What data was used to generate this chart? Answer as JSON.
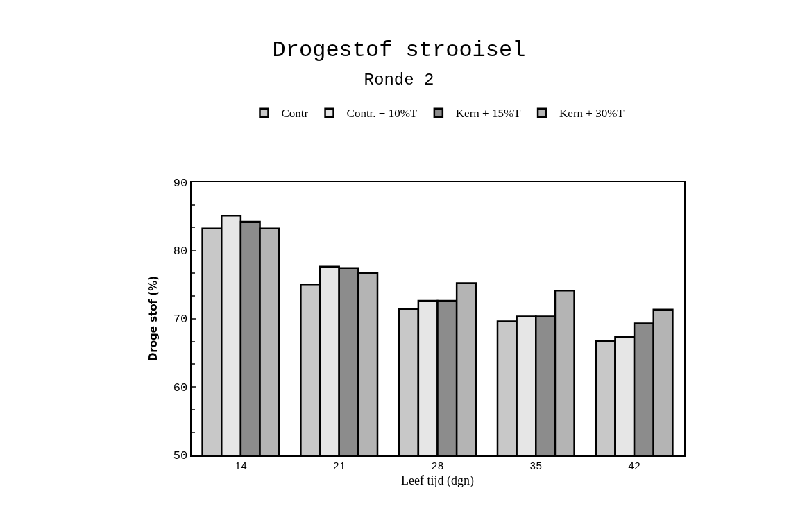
{
  "chart_data": {
    "type": "bar",
    "title": "Drogestof strooisel",
    "subtitle": "Ronde 2",
    "xlabel": "Leef tijd (dgn)",
    "ylabel": "Droge stof (%)",
    "categories": [
      "14",
      "21",
      "28",
      "35",
      "42"
    ],
    "series": [
      {
        "name": "Contr",
        "color": "#c8c8c8",
        "values": [
          83.2,
          75.0,
          71.4,
          69.6,
          66.7
        ]
      },
      {
        "name": "Contr. + 10%T",
        "color": "#e6e6e6",
        "values": [
          85.1,
          77.6,
          72.6,
          70.3,
          67.3
        ]
      },
      {
        "name": "Kern + 15%T",
        "color": "#8c8c8c",
        "values": [
          84.2,
          77.4,
          72.6,
          70.3,
          69.3
        ]
      },
      {
        "name": "Kern + 30%T",
        "color": "#b4b4b4",
        "values": [
          83.2,
          76.7,
          75.2,
          74.1,
          71.3
        ]
      }
    ],
    "ylim": [
      50,
      90
    ],
    "yticks": [
      50,
      60,
      70,
      80,
      90
    ],
    "grid": false,
    "legend": "top"
  }
}
